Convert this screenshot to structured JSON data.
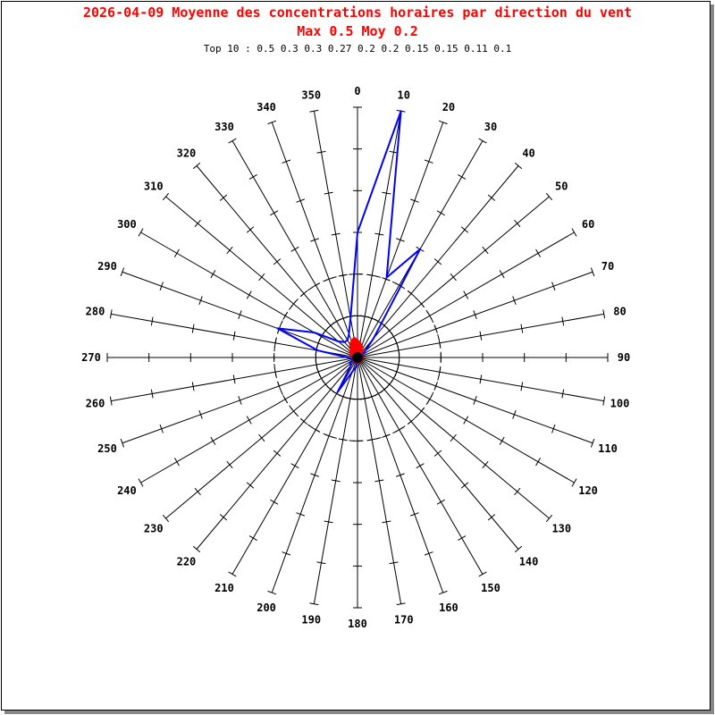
{
  "chart_data": {
    "type": "polar-line",
    "title": "2026-04-09 Moyenne des concentrations horaires par direction du vent",
    "subtitle": "Max 0.5 Moy 0.2",
    "top10": "Top 10 : 0.5 0.3 0.3 0.27 0.2 0.2 0.15 0.15 0.11 0.1",
    "directions": [
      0,
      10,
      20,
      30,
      40,
      50,
      60,
      70,
      80,
      90,
      100,
      110,
      120,
      130,
      140,
      150,
      160,
      170,
      180,
      190,
      200,
      210,
      220,
      230,
      240,
      250,
      260,
      270,
      280,
      290,
      300,
      310,
      320,
      330,
      340,
      350
    ],
    "rlim": [
      0,
      0.5
    ],
    "ring_values": [
      0.0833,
      0.1667
    ],
    "series": [
      {
        "color": "#0000ff",
        "values": [
          0.25,
          0.5,
          0.17,
          0.25,
          0.05,
          0.02,
          0.01,
          0.01,
          0.01,
          0.01,
          0.01,
          0.01,
          0.01,
          0.01,
          0.01,
          0.01,
          0.01,
          0.01,
          0.01,
          0.02,
          0.03,
          0.08,
          0.02,
          0.02,
          0.01,
          0.01,
          0.01,
          0.02,
          0.08,
          0.17,
          0.1,
          0.05,
          0.04,
          0.04,
          0.05,
          0.08
        ]
      },
      {
        "color": "#ff0000",
        "values": [
          0.035,
          0.03,
          0.025,
          0.02,
          0.015,
          0.01,
          0.01,
          0.01,
          0.01,
          0.01,
          0.01,
          0.01,
          0.01,
          0.01,
          0.01,
          0.01,
          0.01,
          0.01,
          0.01,
          0.01,
          0.01,
          0.01,
          0.01,
          0.01,
          0.01,
          0.01,
          0.01,
          0.01,
          0.01,
          0.015,
          0.015,
          0.02,
          0.02,
          0.03,
          0.035,
          0.04
        ]
      }
    ]
  }
}
